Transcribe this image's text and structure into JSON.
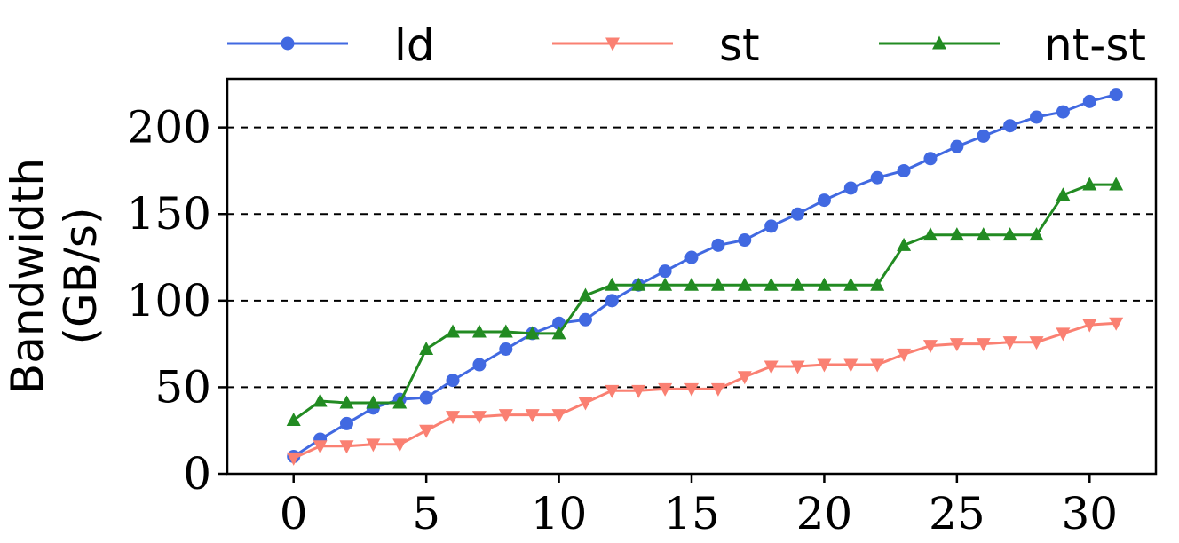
{
  "chart_data": {
    "type": "line",
    "xlabel": "",
    "ylabel_line1": "Bandwidth",
    "ylabel_line2": "(GB/s)",
    "xlim": [
      -2.5,
      32.5
    ],
    "ylim": [
      0,
      228
    ],
    "xticks": [
      0,
      5,
      10,
      15,
      20,
      25,
      30
    ],
    "yticks": [
      0,
      50,
      100,
      150,
      200
    ],
    "grid": "horizontal-dashed",
    "legend_position": "top-outside",
    "x": [
      0,
      1,
      2,
      3,
      4,
      5,
      6,
      7,
      8,
      9,
      10,
      11,
      12,
      13,
      14,
      15,
      16,
      17,
      18,
      19,
      20,
      21,
      22,
      23,
      24,
      25,
      26,
      27,
      28,
      29,
      30,
      31
    ],
    "series": [
      {
        "name": "ld",
        "color": "#4169e1",
        "marker": "circle",
        "values": [
          10,
          20,
          29,
          38,
          43,
          44,
          54,
          63,
          72,
          81,
          87,
          89,
          100,
          109,
          117,
          125,
          132,
          135,
          143,
          150,
          158,
          165,
          171,
          175,
          182,
          189,
          195,
          201,
          206,
          209,
          215,
          219
        ]
      },
      {
        "name": "st",
        "color": "#fa8072",
        "marker": "triangle-down",
        "values": [
          9,
          16,
          16,
          17,
          17,
          25,
          33,
          33,
          34,
          34,
          34,
          41,
          48,
          48,
          49,
          49,
          49,
          56,
          62,
          62,
          63,
          63,
          63,
          69,
          74,
          75,
          75,
          76,
          76,
          81,
          86,
          87
        ]
      },
      {
        "name": "nt-st",
        "color": "#228b22",
        "marker": "triangle-up",
        "values": [
          31,
          42,
          41,
          41,
          41,
          72,
          82,
          82,
          82,
          81,
          81,
          103,
          109,
          109,
          109,
          109,
          109,
          109,
          109,
          109,
          109,
          109,
          109,
          132,
          138,
          138,
          138,
          138,
          138,
          161,
          167,
          167
        ]
      }
    ]
  }
}
